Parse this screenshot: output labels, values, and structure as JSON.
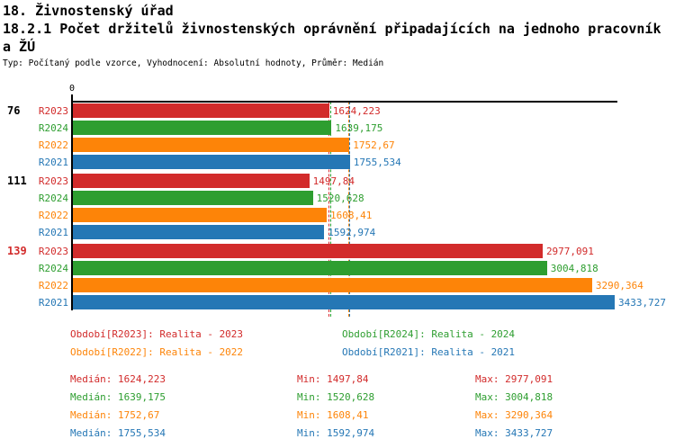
{
  "header": {
    "line1": "18. Živnostenský úřad",
    "line2": "18.2.1 Počet držitelů živnostenských oprávnění připadajících na jednoho pracovník",
    "line3": "a ŽÚ",
    "meta": "Typ: Počítaný podle vzorce, Vyhodnocení: Absolutní hodnoty, Průměr: Medián"
  },
  "chart_data": {
    "type": "bar",
    "orientation": "horizontal",
    "title": "18.2.1 Počet držitelů živnostenských oprávnění připadajících na jednoho pracovníka ŽÚ",
    "x_origin_label": "0",
    "xlim": [
      0,
      3457
    ],
    "grid": false,
    "series_order": [
      "R2023",
      "R2024",
      "R2022",
      "R2021"
    ],
    "series_colors": {
      "R2023": "#d22b2b",
      "R2024": "#2e9e30",
      "R2022": "#fd8408",
      "R2021": "#2577b5"
    },
    "groups": [
      {
        "label": "76",
        "label_color": "#000000",
        "bars": [
          {
            "series": "R2023",
            "value": 1624.223,
            "display": "1624,223"
          },
          {
            "series": "R2024",
            "value": 1639.175,
            "display": "1639,175"
          },
          {
            "series": "R2022",
            "value": 1752.67,
            "display": "1752,67"
          },
          {
            "series": "R2021",
            "value": 1755.534,
            "display": "1755,534"
          }
        ]
      },
      {
        "label": "111",
        "label_color": "#000000",
        "bars": [
          {
            "series": "R2023",
            "value": 1497.84,
            "display": "1497,84"
          },
          {
            "series": "R2024",
            "value": 1520.628,
            "display": "1520,628"
          },
          {
            "series": "R2022",
            "value": 1608.41,
            "display": "1608,41"
          },
          {
            "series": "R2021",
            "value": 1592.974,
            "display": "1592,974"
          }
        ]
      },
      {
        "label": "139",
        "label_color": "#d22b2b",
        "bars": [
          {
            "series": "R2023",
            "value": 2977.091,
            "display": "2977,091"
          },
          {
            "series": "R2024",
            "value": 3004.818,
            "display": "3004,818"
          },
          {
            "series": "R2022",
            "value": 3290.364,
            "display": "3290,364"
          },
          {
            "series": "R2021",
            "value": 3433.727,
            "display": "3433,727"
          }
        ]
      }
    ],
    "median_lines": [
      {
        "series": "R2023",
        "value": 1624.223
      },
      {
        "series": "R2024",
        "value": 1639.175
      },
      {
        "series": "R2022",
        "value": 1752.67
      },
      {
        "series": "R2021",
        "value": 1755.534
      }
    ]
  },
  "legend": {
    "items": [
      {
        "series": "R2023",
        "text": "Období[R2023]: Realita - 2023"
      },
      {
        "series": "R2024",
        "text": "Období[R2024]: Realita - 2024"
      },
      {
        "series": "R2022",
        "text": "Období[R2022]: Realita - 2022"
      },
      {
        "series": "R2021",
        "text": "Období[R2021]: Realita - 2021"
      }
    ]
  },
  "stats": {
    "rows": [
      {
        "series": "R2023",
        "median": "Medián: 1624,223",
        "min": "Min: 1497,84",
        "max": "Max: 2977,091"
      },
      {
        "series": "R2024",
        "median": "Medián: 1639,175",
        "min": "Min: 1520,628",
        "max": "Max: 3004,818"
      },
      {
        "series": "R2022",
        "median": "Medián: 1752,67",
        "min": "Min: 1608,41",
        "max": "Max: 3290,364"
      },
      {
        "series": "R2021",
        "median": "Medián: 1755,534",
        "min": "Min: 1592,974",
        "max": "Max: 3433,727"
      }
    ]
  }
}
